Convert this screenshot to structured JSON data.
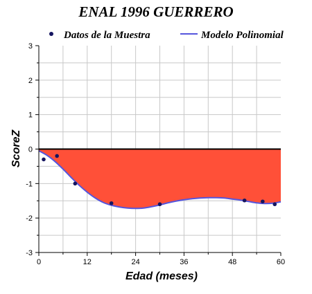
{
  "chart_data": {
    "type": "line",
    "title": "ENAL 1996 GUERRERO",
    "xlabel": "Edad (meses)",
    "ylabel": "ScoreZ",
    "xlim": [
      0,
      60
    ],
    "ylim": [
      -3,
      3
    ],
    "xticks": [
      0,
      12,
      24,
      36,
      48,
      60
    ],
    "yticks": [
      -3,
      -2,
      -1,
      0,
      1,
      2,
      3
    ],
    "x_minor_step": 6,
    "y_minor_step": 0.5,
    "grid": true,
    "legend_position": "top",
    "colors": {
      "fill": "#ff5038",
      "curve": "#5555dd",
      "points": "#151560",
      "grid": "#c8c8c8",
      "zero_line": "#000000"
    },
    "series": [
      {
        "name": "Datos de la Muestra",
        "kind": "scatter",
        "x": [
          1.2,
          4.5,
          9.0,
          18.0,
          30.0,
          51.0,
          55.5,
          58.5
        ],
        "y": [
          -0.3,
          -0.2,
          -1.0,
          -1.57,
          -1.6,
          -1.49,
          -1.52,
          -1.6
        ]
      },
      {
        "name": "Modelo Polinomial",
        "kind": "line",
        "x": [
          0,
          2,
          4,
          6,
          8,
          10,
          12,
          14,
          16,
          18,
          20,
          22,
          24,
          26,
          28,
          30,
          32,
          34,
          36,
          38,
          40,
          42,
          44,
          46,
          48,
          50,
          52,
          54,
          56,
          58,
          60
        ],
        "y": [
          -0.05,
          -0.18,
          -0.36,
          -0.58,
          -0.82,
          -1.05,
          -1.25,
          -1.42,
          -1.55,
          -1.63,
          -1.68,
          -1.71,
          -1.72,
          -1.71,
          -1.67,
          -1.62,
          -1.56,
          -1.51,
          -1.47,
          -1.44,
          -1.42,
          -1.41,
          -1.41,
          -1.42,
          -1.45,
          -1.48,
          -1.52,
          -1.56,
          -1.58,
          -1.57,
          -1.53
        ]
      }
    ]
  }
}
